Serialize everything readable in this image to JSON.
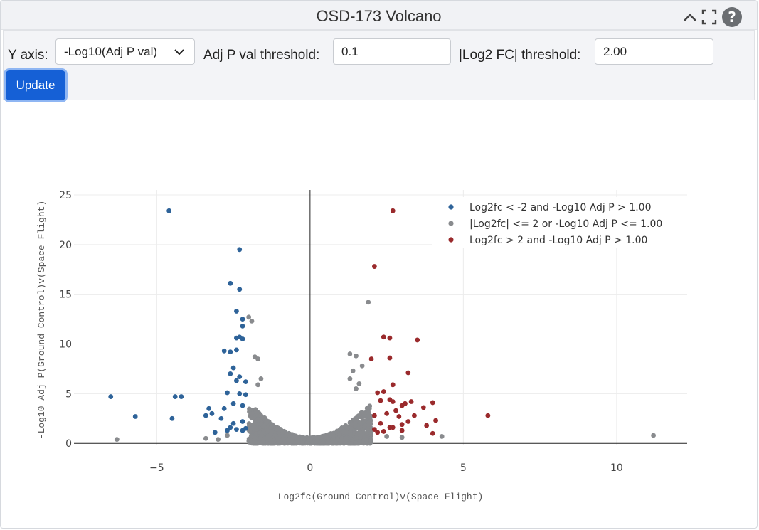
{
  "header": {
    "title": "OSD-173 Volcano",
    "icons": [
      "collapse-chevron-icon",
      "fullscreen-icon",
      "help-icon"
    ]
  },
  "controls": {
    "y_axis_label": "Y axis:",
    "y_axis_value": "-Log10(Adj P val)",
    "adj_p_label": "Adj P val threshold:",
    "adj_p_value": "0.1",
    "log2fc_label": "|Log2 FC| threshold:",
    "log2fc_value": "2.00",
    "update_label": "Update"
  },
  "colors": {
    "down": "#2e6399",
    "ns": "#898b8e",
    "up": "#9a2a2c",
    "button": "#1560d6"
  },
  "chart_data": {
    "type": "scatter",
    "xlabel": "Log2fc(Ground Control)v(Space Flight)",
    "ylabel": "-Log10 Adj P(Ground Control)v(Space Flight)",
    "xlim": [
      -7.7,
      12.3
    ],
    "ylim": [
      -0.2,
      25.5
    ],
    "xticks": [
      -5,
      0,
      5,
      10
    ],
    "yticks": [
      0,
      5,
      10,
      15,
      20,
      25
    ],
    "grid": true,
    "legend_position": "top-right",
    "series": [
      {
        "name": "Log2fc < -2 and -Log10 Adj P > 1.00",
        "color_key": "down",
        "points": [
          [
            -4.6,
            23.4
          ],
          [
            -2.3,
            19.5
          ],
          [
            -2.6,
            16.1
          ],
          [
            -2.3,
            15.5
          ],
          [
            -2.4,
            13.3
          ],
          [
            -2.2,
            12.5
          ],
          [
            -2.2,
            11.8
          ],
          [
            -2.4,
            10.6
          ],
          [
            -2.3,
            10.7
          ],
          [
            -2.2,
            10.5
          ],
          [
            -2.8,
            9.3
          ],
          [
            -2.6,
            9.2
          ],
          [
            -2.4,
            9.4
          ],
          [
            -2.5,
            7.6
          ],
          [
            -2.6,
            7.0
          ],
          [
            -2.3,
            6.7
          ],
          [
            -2.1,
            6.2
          ],
          [
            -2.4,
            6.3
          ],
          [
            -2.7,
            5.1
          ],
          [
            -2.3,
            5.0
          ],
          [
            -2.1,
            4.9
          ],
          [
            -2.5,
            4.0
          ],
          [
            -2.2,
            3.8
          ],
          [
            -2.8,
            3.5
          ],
          [
            -3.3,
            3.5
          ],
          [
            -3.2,
            3.0
          ],
          [
            -2.9,
            2.5
          ],
          [
            -3.4,
            2.8
          ],
          [
            -2.2,
            2.2
          ],
          [
            -2.5,
            2.0
          ],
          [
            -2.6,
            1.6
          ],
          [
            -2.4,
            1.4
          ],
          [
            -2.2,
            1.3
          ],
          [
            -3.1,
            1.1
          ],
          [
            -2.1,
            1.5
          ],
          [
            -2.7,
            1.3
          ],
          [
            -6.5,
            4.7
          ],
          [
            -4.4,
            4.7
          ],
          [
            -4.2,
            4.7
          ],
          [
            -5.7,
            2.7
          ],
          [
            -4.5,
            2.5
          ]
        ]
      },
      {
        "name": "|Log2fc| <= 2 or -Log10 Adj P <= 1.00",
        "color_key": "ns",
        "points": [
          [
            1.9,
            14.2
          ],
          [
            -2.0,
            12.7
          ],
          [
            -1.9,
            12.3
          ],
          [
            1.3,
            9.0
          ],
          [
            1.5,
            8.8
          ],
          [
            -1.8,
            8.7
          ],
          [
            -1.7,
            8.5
          ],
          [
            1.4,
            7.3
          ],
          [
            1.7,
            7.8
          ],
          [
            1.3,
            6.5
          ],
          [
            -1.6,
            6.5
          ],
          [
            -1.7,
            5.9
          ],
          [
            1.6,
            6.0
          ],
          [
            1.5,
            5.5
          ],
          [
            -6.3,
            0.4
          ],
          [
            11.2,
            0.8
          ],
          [
            4.3,
            0.7
          ],
          [
            -3.0,
            0.4
          ],
          [
            -3.4,
            0.5
          ],
          [
            3.0,
            0.6
          ],
          [
            -2.7,
            0.8
          ],
          [
            2.5,
            0.7
          ]
        ],
        "cloud": true
      },
      {
        "name": "Log2fc > 2 and -Log10 Adj P > 1.00",
        "color_key": "up",
        "points": [
          [
            2.7,
            23.4
          ],
          [
            2.1,
            17.8
          ],
          [
            2.4,
            10.7
          ],
          [
            2.6,
            10.6
          ],
          [
            3.5,
            10.4
          ],
          [
            2.0,
            8.5
          ],
          [
            2.6,
            8.6
          ],
          [
            3.2,
            7.1
          ],
          [
            2.7,
            5.9
          ],
          [
            2.4,
            5.2
          ],
          [
            2.2,
            5.1
          ],
          [
            2.6,
            4.4
          ],
          [
            2.3,
            4.3
          ],
          [
            2.7,
            4.2
          ],
          [
            3.3,
            4.2
          ],
          [
            3.1,
            4.0
          ],
          [
            3.0,
            3.8
          ],
          [
            4.0,
            4.1
          ],
          [
            3.7,
            3.6
          ],
          [
            2.8,
            3.3
          ],
          [
            2.5,
            3.0
          ],
          [
            2.9,
            2.7
          ],
          [
            3.4,
            2.8
          ],
          [
            2.1,
            2.8
          ],
          [
            4.1,
            2.3
          ],
          [
            3.2,
            2.2
          ],
          [
            2.3,
            2.0
          ],
          [
            3.0,
            1.9
          ],
          [
            2.6,
            1.6
          ],
          [
            3.8,
            1.8
          ],
          [
            2.1,
            1.4
          ],
          [
            2.4,
            1.2
          ],
          [
            3.0,
            1.3
          ],
          [
            2.2,
            1.1
          ],
          [
            2.7,
            1.6
          ],
          [
            4.0,
            1.0
          ],
          [
            5.8,
            2.8
          ]
        ]
      }
    ]
  }
}
